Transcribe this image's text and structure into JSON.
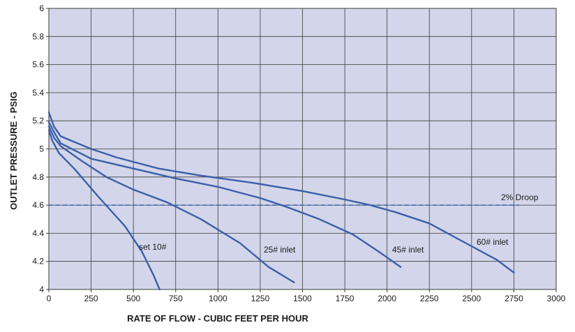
{
  "chart_data": {
    "type": "line",
    "title": "",
    "xlabel": "RATE OF FLOW - CUBIC FEET PER HOUR",
    "ylabel": "OUTLET PRESSURE - PSIG",
    "xlim": [
      0,
      3000
    ],
    "ylim": [
      4,
      6
    ],
    "x_ticks": [
      0,
      250,
      500,
      750,
      1000,
      1250,
      1500,
      1750,
      2000,
      2250,
      2500,
      2750,
      3000
    ],
    "y_ticks": [
      4,
      4.2,
      4.4,
      4.6,
      4.8,
      5,
      5.2,
      5.4,
      5.6,
      5.8,
      6
    ],
    "x_tick_labels": [
      "0",
      "250",
      "500",
      "750",
      "1000",
      "1250",
      "1500",
      "1750",
      "2000",
      "2250",
      "2500",
      "2750",
      "3000"
    ],
    "y_tick_labels": [
      "4",
      "4.2",
      "4.4",
      "4.6",
      "4.8",
      "5",
      "5.2",
      "5.4",
      "5.6",
      "5.8",
      "6"
    ],
    "grid": true,
    "colors": {
      "plot_background": "#d3d6ea",
      "grid": "#3a3a3a",
      "series": "#3b5fa8",
      "reference": "#4a72b8"
    },
    "series": [
      {
        "label": "set 10#",
        "points": [
          [
            0,
            5.13
          ],
          [
            20,
            5.06
          ],
          [
            60,
            4.97
          ],
          [
            150,
            4.86
          ],
          [
            300,
            4.65
          ],
          [
            450,
            4.45
          ],
          [
            550,
            4.27
          ],
          [
            620,
            4.1
          ],
          [
            655,
            4.0
          ]
        ]
      },
      {
        "label": "25# inlet",
        "points": [
          [
            0,
            5.16
          ],
          [
            30,
            5.08
          ],
          [
            70,
            5.02
          ],
          [
            200,
            4.91
          ],
          [
            340,
            4.8
          ],
          [
            500,
            4.71
          ],
          [
            700,
            4.62
          ],
          [
            900,
            4.5
          ],
          [
            1130,
            4.33
          ],
          [
            1300,
            4.16
          ],
          [
            1450,
            4.05
          ]
        ]
      },
      {
        "label": "45# inlet",
        "points": [
          [
            0,
            5.19
          ],
          [
            40,
            5.1
          ],
          [
            70,
            5.04
          ],
          [
            250,
            4.93
          ],
          [
            500,
            4.86
          ],
          [
            750,
            4.79
          ],
          [
            1000,
            4.73
          ],
          [
            1250,
            4.65
          ],
          [
            1400,
            4.59
          ],
          [
            1600,
            4.5
          ],
          [
            1800,
            4.39
          ],
          [
            1950,
            4.27
          ],
          [
            2080,
            4.16
          ]
        ]
      },
      {
        "label": "60# inlet",
        "points": [
          [
            0,
            5.26
          ],
          [
            30,
            5.16
          ],
          [
            70,
            5.09
          ],
          [
            250,
            5.0
          ],
          [
            400,
            4.94
          ],
          [
            650,
            4.86
          ],
          [
            900,
            4.81
          ],
          [
            1200,
            4.76
          ],
          [
            1500,
            4.7
          ],
          [
            1750,
            4.64
          ],
          [
            1900,
            4.6
          ],
          [
            2050,
            4.55
          ],
          [
            2250,
            4.47
          ],
          [
            2450,
            4.34
          ],
          [
            2650,
            4.21
          ],
          [
            2750,
            4.12
          ]
        ]
      }
    ],
    "reference_line": {
      "y": 4.6,
      "label": "2% Droop",
      "style": "dashed"
    }
  },
  "annotations": {
    "set10": "set 10#",
    "inlet25": "25# inlet",
    "inlet45": "45# inlet",
    "inlet60": "60# inlet",
    "droop": "2% Droop"
  }
}
